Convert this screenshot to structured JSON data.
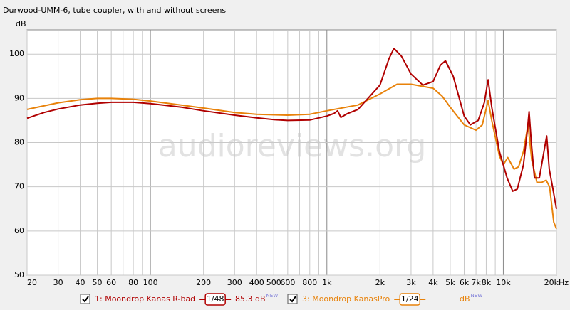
{
  "chart_data": {
    "type": "line",
    "title": "Durwood-UMM-6, tube coupler, with and without screens",
    "y_label": "dB",
    "watermark": "audioreviews.org",
    "x_scale": "log",
    "grid": true,
    "xlim": [
      20,
      20000
    ],
    "ylim": [
      50,
      105.5
    ],
    "yticks": [
      50,
      60,
      70,
      80,
      90,
      100
    ],
    "xticks": [
      20,
      30,
      40,
      50,
      60,
      80,
      100,
      200,
      300,
      400,
      500,
      600,
      800,
      {
        "value": 1000,
        "label": "1k"
      },
      {
        "value": 2000,
        "label": "2k"
      },
      {
        "value": 3000,
        "label": "3k"
      },
      {
        "value": 4000,
        "label": "4k"
      },
      {
        "value": 5000,
        "label": "5k"
      },
      {
        "value": 6000,
        "label": "6k"
      },
      {
        "value": 7000,
        "label": "7k"
      },
      {
        "value": 8000,
        "label": "8k"
      },
      {
        "value": 10000,
        "label": "10k"
      },
      {
        "value": 20000,
        "label": "20kHz"
      }
    ],
    "x_minor_ticks": [
      70,
      90,
      700,
      900,
      9000
    ],
    "series": [
      {
        "name": "1: Moondrop Kanas R-bad",
        "color": "#b00000",
        "smoothing": "1/48",
        "level": "85.3 dB",
        "badge": "NEW",
        "x": [
          20,
          25,
          30,
          40,
          50,
          60,
          80,
          100,
          150,
          200,
          300,
          400,
          500,
          600,
          800,
          1000,
          1100,
          1150,
          1200,
          1300,
          1500,
          2000,
          2250,
          2400,
          2650,
          3000,
          3500,
          4000,
          4400,
          4700,
          5200,
          6000,
          6500,
          7200,
          7800,
          8200,
          8600,
          9500,
          10500,
          11300,
          12000,
          13000,
          13700,
          14000,
          14400,
          15000,
          16000,
          17000,
          17600,
          18200,
          19000,
          20000
        ],
        "values": [
          85.5,
          86.8,
          87.6,
          88.5,
          88.9,
          89.1,
          89.1,
          88.8,
          88,
          87.2,
          86.2,
          85.6,
          85.2,
          85,
          85.1,
          86,
          86.6,
          87.2,
          85.7,
          86.5,
          87.5,
          93,
          99,
          101.3,
          99.5,
          95.5,
          93,
          93.8,
          97.5,
          98.5,
          95,
          86,
          84,
          85,
          89,
          94.2,
          88,
          78,
          72,
          69,
          69.5,
          75,
          83,
          87,
          80,
          72,
          72,
          78,
          81.5,
          74,
          70,
          65
        ]
      },
      {
        "name": "3: Moondrop KanasPro",
        "color": "#e8820a",
        "smoothing": "1/24",
        "level": "dB",
        "badge": "NEW",
        "x": [
          20,
          30,
          40,
          50,
          60,
          80,
          100,
          200,
          300,
          400,
          600,
          800,
          1000,
          1500,
          2000,
          2500,
          3000,
          4000,
          4500,
          5000,
          6000,
          7000,
          7600,
          8200,
          8600,
          9500,
          10000,
          10600,
          11500,
          12200,
          13000,
          13800,
          14500,
          15500,
          16500,
          17500,
          18300,
          19300,
          20000
        ],
        "values": [
          87.5,
          89,
          89.7,
          90,
          90,
          89.8,
          89.4,
          87.8,
          86.8,
          86.4,
          86.2,
          86.4,
          87.2,
          88.5,
          91,
          93.2,
          93.2,
          92.3,
          90.5,
          88,
          84,
          82.8,
          84,
          89.5,
          85,
          77,
          75,
          76.6,
          74,
          74.5,
          78,
          84,
          76,
          71,
          71,
          71.5,
          70,
          62,
          60.5
        ]
      }
    ]
  }
}
